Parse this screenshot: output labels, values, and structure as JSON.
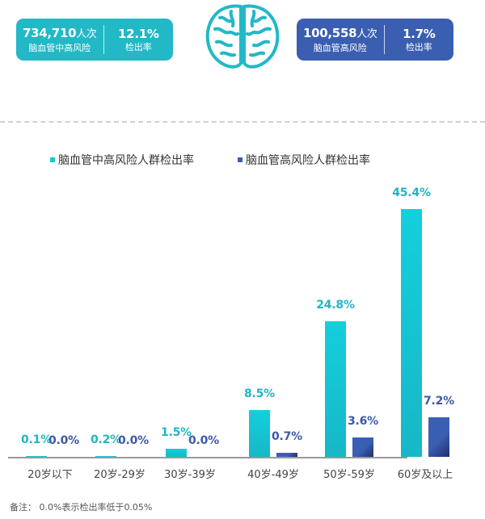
{
  "stats": {
    "left": {
      "count": "734,710",
      "count_unit": "人次",
      "label": "脑血管中高风险",
      "rate": "12.1%",
      "rate_label": "检出率",
      "color": "#22b8c6"
    },
    "right": {
      "count": "100,558",
      "count_unit": "人次",
      "label": "脑血管高风险",
      "rate": "1.7%",
      "rate_label": "检出率",
      "color": "#3a5fb0"
    },
    "center_icon": "brain-icon"
  },
  "chart_data": {
    "type": "bar",
    "title": "",
    "xlabel": "",
    "ylabel": "",
    "categories": [
      "20岁以下",
      "20岁-29岁",
      "30岁-39岁",
      "40岁-49岁",
      "50岁-59岁",
      "60岁及以上"
    ],
    "series": [
      {
        "name": "脑血管中高风险人群检出率",
        "color": "#17c6d4",
        "values": [
          0.1,
          0.2,
          1.5,
          8.5,
          24.8,
          45.4
        ],
        "labels": [
          "0.1%",
          "0.2%",
          "1.5%",
          "8.5%",
          "24.8%",
          "45.4%"
        ]
      },
      {
        "name": "脑血管高风险人群检出率",
        "color": "#3a5fb0",
        "values": [
          0.0,
          0.0,
          0.0,
          0.7,
          3.6,
          7.2
        ],
        "labels": [
          "0.0%",
          "0.0%",
          "0.0%",
          "0.7%",
          "3.6%",
          "7.2%"
        ]
      }
    ],
    "ylim": [
      0,
      50
    ],
    "grid": false,
    "legend_position": "top",
    "data_labels": true
  },
  "legend": {
    "items": [
      {
        "label": "脑血管中高风险人群检出率",
        "color": "#17c6d4"
      },
      {
        "label": "脑血管高风险人群检出率",
        "color": "#3a5fb0"
      }
    ]
  },
  "footnote": "备注： 0.0%表示检出率低于0.05%"
}
